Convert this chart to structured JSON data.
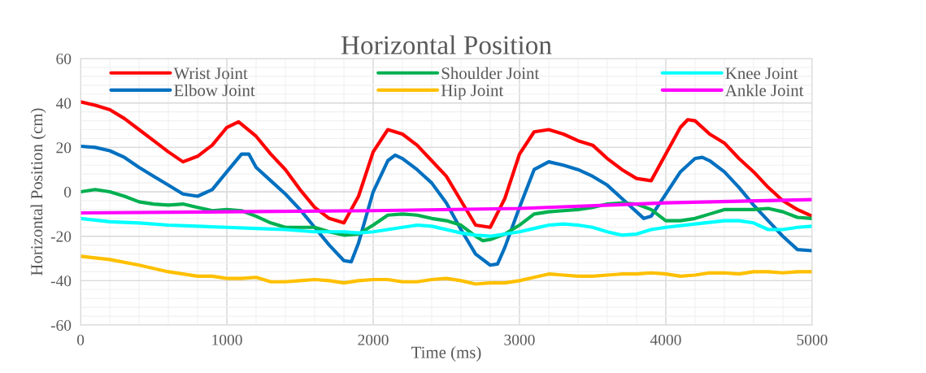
{
  "chart_data": {
    "type": "line",
    "title": "Horizontal Position",
    "xlabel": "Time (ms)",
    "ylabel": "Horizontal Position (cm)",
    "xlim": [
      0,
      5000
    ],
    "xticks": [
      0,
      1000,
      2000,
      3000,
      4000,
      5000
    ],
    "ylim": [
      -60,
      60
    ],
    "yticks": [
      -60,
      -40,
      -20,
      0,
      20,
      40,
      60
    ],
    "grid": true,
    "legend": "top",
    "marker": "none",
    "line_style": "solid",
    "series": [
      {
        "name": "Wrist Joint",
        "color": "#ff0000",
        "x": [
          0,
          100,
          200,
          300,
          400,
          500,
          600,
          700,
          800,
          900,
          1000,
          1080,
          1200,
          1300,
          1400,
          1500,
          1600,
          1700,
          1800,
          1900,
          2000,
          2100,
          2200,
          2300,
          2400,
          2500,
          2600,
          2700,
          2800,
          2900,
          3000,
          3100,
          3200,
          3300,
          3400,
          3500,
          3600,
          3700,
          3800,
          3900,
          4000,
          4100,
          4150,
          4200,
          4300,
          4400,
          4500,
          4600,
          4700,
          4800,
          4900,
          5000
        ],
        "values": [
          40.5,
          39,
          37,
          33,
          28,
          23,
          18,
          13.5,
          16,
          21,
          29,
          31.5,
          25,
          17,
          10,
          1,
          -7,
          -12,
          -14,
          -2,
          18,
          28,
          26,
          21,
          14,
          7,
          -4,
          -15,
          -16,
          -3,
          17,
          27,
          28,
          26,
          23,
          21,
          15,
          10,
          6,
          5,
          17,
          29,
          32.5,
          32,
          26,
          22,
          15,
          9,
          2,
          -4,
          -8,
          -11
        ]
      },
      {
        "name": "Elbow Joint",
        "color": "#0070c0",
        "x": [
          0,
          100,
          200,
          300,
          400,
          500,
          600,
          700,
          800,
          900,
          1000,
          1100,
          1150,
          1200,
          1300,
          1400,
          1500,
          1600,
          1700,
          1800,
          1850,
          1900,
          2000,
          2100,
          2150,
          2200,
          2300,
          2400,
          2500,
          2600,
          2700,
          2800,
          2850,
          2900,
          3000,
          3100,
          3200,
          3300,
          3400,
          3500,
          3600,
          3700,
          3800,
          3850,
          3900,
          4000,
          4100,
          4200,
          4250,
          4300,
          4400,
          4500,
          4600,
          4700,
          4800,
          4900,
          5000
        ],
        "values": [
          20.5,
          20,
          18.5,
          15.5,
          11,
          7,
          3,
          -1,
          -2,
          1,
          9,
          17,
          17,
          11,
          5,
          -1,
          -8,
          -16,
          -24,
          -31,
          -31.5,
          -23,
          0,
          14,
          16.5,
          15,
          10,
          4,
          -5,
          -17,
          -28,
          -33,
          -32.5,
          -25,
          -7,
          10,
          13.5,
          12,
          10,
          7,
          3,
          -3,
          -9,
          -12,
          -11,
          -1,
          9,
          15,
          15.5,
          14,
          9,
          2,
          -6,
          -13,
          -20,
          -26,
          -26.5
        ]
      },
      {
        "name": "Shoulder Joint",
        "color": "#00b050",
        "x": [
          0,
          100,
          200,
          300,
          400,
          500,
          600,
          700,
          800,
          900,
          1000,
          1100,
          1200,
          1300,
          1400,
          1500,
          1600,
          1700,
          1800,
          1900,
          2000,
          2100,
          2200,
          2300,
          2400,
          2500,
          2600,
          2700,
          2750,
          2800,
          2900,
          3000,
          3100,
          3200,
          3300,
          3400,
          3500,
          3600,
          3700,
          3800,
          3900,
          4000,
          4100,
          4200,
          4300,
          4400,
          4500,
          4600,
          4700,
          4800,
          4900,
          5000
        ],
        "values": [
          0,
          1,
          0,
          -2,
          -4.5,
          -5.5,
          -6,
          -5.5,
          -7,
          -8.5,
          -8,
          -8.5,
          -11,
          -14,
          -16,
          -16,
          -16,
          -18,
          -19.5,
          -19,
          -15,
          -10.5,
          -10,
          -10.5,
          -12,
          -13,
          -15,
          -20,
          -22,
          -21.5,
          -19,
          -15,
          -10,
          -9,
          -8.5,
          -8,
          -7,
          -5.5,
          -5,
          -5.5,
          -8,
          -13,
          -13,
          -12,
          -10,
          -8,
          -8,
          -8,
          -7.5,
          -9,
          -11.5,
          -12
        ]
      },
      {
        "name": "Hip Joint",
        "color": "#ffc000",
        "x": [
          0,
          200,
          400,
          600,
          800,
          900,
          1000,
          1100,
          1200,
          1300,
          1400,
          1500,
          1600,
          1700,
          1800,
          1900,
          2000,
          2100,
          2200,
          2300,
          2400,
          2500,
          2600,
          2700,
          2800,
          2900,
          3000,
          3100,
          3200,
          3300,
          3400,
          3500,
          3600,
          3700,
          3800,
          3900,
          4000,
          4100,
          4200,
          4300,
          4400,
          4500,
          4600,
          4700,
          4800,
          4900,
          5000
        ],
        "values": [
          -29,
          -30.5,
          -33,
          -36,
          -38,
          -38,
          -39,
          -39,
          -38.5,
          -40.5,
          -40.5,
          -40,
          -39.5,
          -40,
          -41,
          -40,
          -39.5,
          -39.5,
          -40.5,
          -40.5,
          -39.5,
          -39,
          -40,
          -41.5,
          -41,
          -41,
          -40,
          -38.5,
          -37,
          -37.5,
          -38,
          -38,
          -37.5,
          -37,
          -37,
          -36.5,
          -37,
          -38,
          -37.5,
          -36.5,
          -36.5,
          -37,
          -36,
          -36,
          -36.5,
          -36,
          -36
        ]
      },
      {
        "name": "Knee Joint",
        "color": "#00ffff",
        "x": [
          0,
          200,
          400,
          600,
          800,
          1000,
          1200,
          1400,
          1600,
          1800,
          1900,
          2000,
          2100,
          2200,
          2300,
          2400,
          2500,
          2600,
          2700,
          2800,
          2900,
          3000,
          3100,
          3200,
          3300,
          3400,
          3500,
          3600,
          3700,
          3800,
          3900,
          4000,
          4200,
          4400,
          4500,
          4600,
          4700,
          4800,
          4900,
          5000
        ],
        "values": [
          -12,
          -13.5,
          -14,
          -15,
          -15.5,
          -16,
          -16.5,
          -17,
          -18,
          -18,
          -18.5,
          -18,
          -17,
          -16,
          -15,
          -15.5,
          -17,
          -18.5,
          -19.5,
          -20,
          -19,
          -18,
          -16.5,
          -15,
          -14.5,
          -15,
          -16,
          -18,
          -19.5,
          -19,
          -17,
          -16,
          -14.5,
          -13,
          -13,
          -14,
          -17,
          -17,
          -16,
          -15.5
        ]
      },
      {
        "name": "Ankle Joint",
        "color": "#ff00ff",
        "x": [
          0,
          1000,
          2000,
          3000,
          4000,
          5000
        ],
        "values": [
          -9.5,
          -9,
          -8.5,
          -7.5,
          -5,
          -3.5
        ]
      }
    ]
  }
}
